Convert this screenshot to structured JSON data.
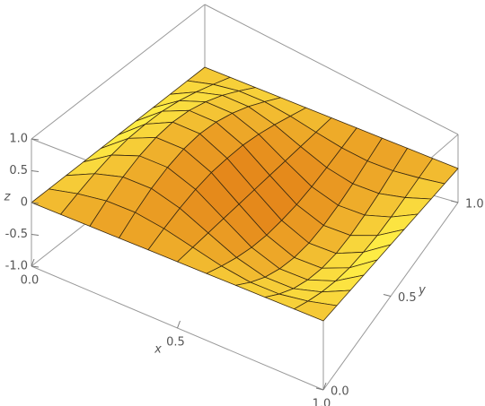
{
  "chart_data": {
    "type": "surface",
    "x": [
      0,
      0.1,
      0.2,
      0.3,
      0.4,
      0.5,
      0.6,
      0.7,
      0.8,
      0.9,
      1
    ],
    "y": [
      0,
      0.1,
      0.2,
      0.3,
      0.4,
      0.5,
      0.6,
      0.7,
      0.8,
      0.9,
      1
    ],
    "z": [
      [
        0,
        0,
        0,
        0,
        0,
        0,
        0,
        0,
        0,
        0,
        0
      ],
      [
        0,
        0.11,
        0.18,
        0.18,
        0.11,
        0,
        -0.11,
        -0.18,
        -0.18,
        -0.11,
        0
      ],
      [
        0,
        0.21,
        0.34,
        0.34,
        0.21,
        0,
        -0.21,
        -0.34,
        -0.34,
        -0.21,
        0
      ],
      [
        0,
        0.29,
        0.46,
        0.46,
        0.29,
        0,
        -0.29,
        -0.46,
        -0.46,
        -0.29,
        0
      ],
      [
        0,
        0.34,
        0.54,
        0.54,
        0.34,
        0,
        -0.34,
        -0.54,
        -0.54,
        -0.34,
        0
      ],
      [
        0,
        0.35,
        0.57,
        0.57,
        0.35,
        0,
        -0.35,
        -0.57,
        -0.57,
        -0.35,
        0
      ],
      [
        0,
        0.34,
        0.54,
        0.54,
        0.34,
        0,
        -0.34,
        -0.54,
        -0.54,
        -0.34,
        0
      ],
      [
        0,
        0.29,
        0.46,
        0.46,
        0.29,
        0,
        -0.29,
        -0.46,
        -0.46,
        -0.29,
        0
      ],
      [
        0,
        0.21,
        0.34,
        0.34,
        0.21,
        0,
        -0.21,
        -0.34,
        -0.34,
        -0.21,
        0
      ],
      [
        0,
        0.11,
        0.18,
        0.18,
        0.11,
        0,
        -0.11,
        -0.18,
        -0.18,
        -0.11,
        0
      ],
      [
        0,
        0,
        0,
        0,
        0,
        0,
        0,
        0,
        0,
        0,
        0
      ]
    ],
    "xlim": [
      0,
      1
    ],
    "ylim": [
      0,
      1
    ],
    "zlim": [
      -1,
      1
    ],
    "xticks": [
      {
        "value": 0,
        "label": "0.0"
      },
      0.5,
      {
        "value": 1,
        "label": "1.0"
      }
    ],
    "yticks": [
      {
        "value": 0,
        "label": "0.0"
      },
      0.5,
      {
        "value": 1,
        "label": "1.0"
      }
    ],
    "zticks": [
      {
        "value": -1,
        "label": "-1.0"
      },
      -0.5,
      0,
      0.5,
      {
        "value": 1,
        "label": "1.0"
      }
    ],
    "xlabel": "x",
    "ylabel": "y",
    "zlabel": "z"
  }
}
